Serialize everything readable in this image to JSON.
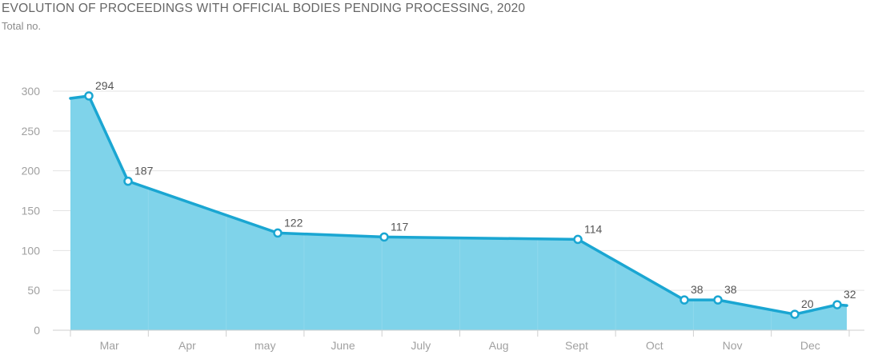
{
  "chart_data": {
    "type": "area",
    "title": "EVOLUTION OF PROCEEDINGS WITH OFFICIAL BODIES PENDING PROCESSING, 2020",
    "subtitle": "Total no.",
    "xlabel": "",
    "ylabel": "",
    "ylim": [
      0,
      300
    ],
    "yticks": [
      "0",
      "50",
      "100",
      "150",
      "200",
      "250",
      "300"
    ],
    "categories": [
      "Mar",
      "Apr",
      "may",
      "June",
      "July",
      "Aug",
      "Sept",
      "Oct",
      "Nov",
      "Dec"
    ],
    "series": [
      {
        "points": [
          {
            "x": "Mar",
            "y": 294,
            "label": "294"
          },
          {
            "x": "Apr",
            "y": 187,
            "label": "187"
          },
          {
            "x": "may",
            "y": 122,
            "label": "122"
          },
          {
            "x": "June",
            "y": 117,
            "label": "117"
          },
          {
            "x": "Sept",
            "y": 114,
            "label": "114"
          },
          {
            "x": "Oct",
            "y": 38,
            "label": "38"
          },
          {
            "x": "Nov",
            "y": 38,
            "label": "38"
          },
          {
            "x": "Dec",
            "y": 20,
            "label": "20"
          },
          {
            "x": "Dec",
            "y": 32,
            "label": "32"
          }
        ]
      }
    ],
    "grid": true,
    "colors": {
      "line": "#1aa6d2",
      "fill": "#7fd3ea",
      "grid": "#e3e3e3",
      "axis": "#cfcfcf"
    }
  }
}
